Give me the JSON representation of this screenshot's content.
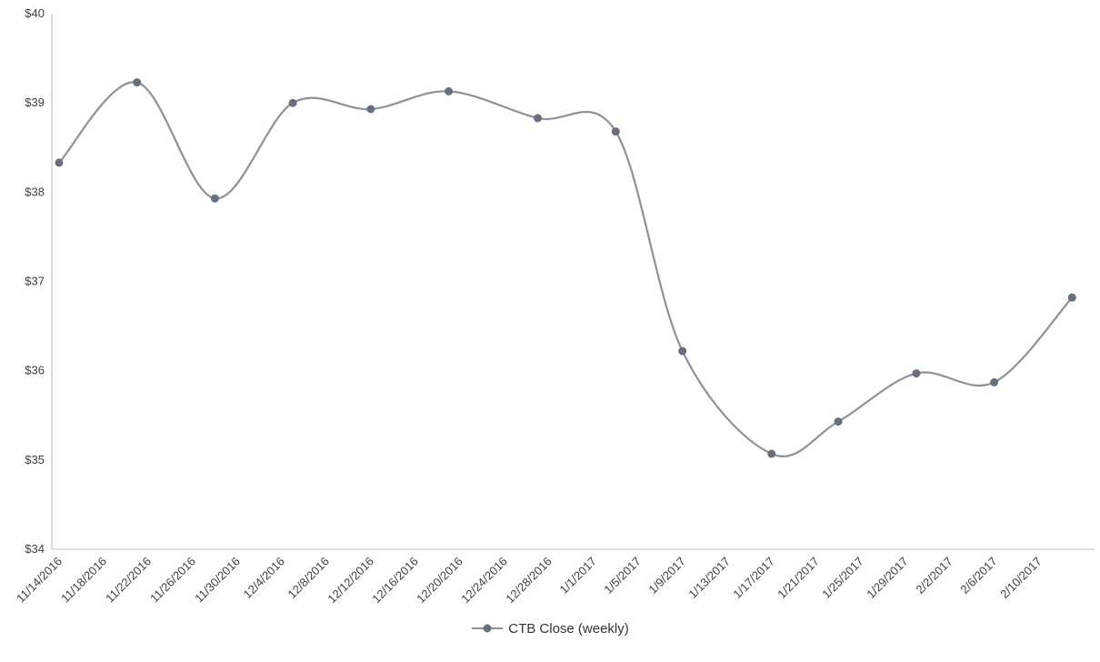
{
  "chart_data": {
    "type": "line",
    "smooth": true,
    "grid": false,
    "legend_position": "bottom",
    "ylim": [
      34,
      40
    ],
    "y_tick_labels": [
      "$34",
      "$35",
      "$36",
      "$37",
      "$38",
      "$39",
      "$40"
    ],
    "x_tick_labels": [
      "11/14/2016",
      "11/18/2016",
      "11/22/2016",
      "11/26/2016",
      "11/30/2016",
      "12/4/2016",
      "12/8/2016",
      "12/12/2016",
      "12/16/2016",
      "12/20/2016",
      "12/24/2016",
      "12/28/2016",
      "1/1/2017",
      "1/5/2017",
      "1/9/2017",
      "1/13/2017",
      "1/17/2017",
      "1/21/2017",
      "1/25/2017",
      "1/29/2017",
      "2/2/2017",
      "2/6/2017",
      "2/10/2017"
    ],
    "series": [
      {
        "name": "CTB Close (weekly)",
        "dates": [
          "11/14/2016",
          "11/21/2016",
          "11/28/2016",
          "12/5/2016",
          "12/12/2016",
          "12/19/2016",
          "12/27/2016",
          "1/3/2017",
          "1/9/2017",
          "1/17/2017",
          "1/23/2017",
          "1/30/2017",
          "2/6/2017",
          "2/13/2017"
        ],
        "values": [
          38.33,
          39.23,
          37.93,
          39.0,
          38.93,
          39.13,
          38.83,
          38.68,
          36.22,
          35.07,
          35.43,
          35.97,
          35.87,
          36.82
        ]
      }
    ],
    "colors": {
      "line": "#8d9298",
      "marker": "#66717d",
      "axis": "#bfbfbf",
      "tick_label": "#3f3f3f",
      "legend_label": "#333333"
    }
  },
  "legend": {
    "label": "CTB Close (weekly)"
  }
}
